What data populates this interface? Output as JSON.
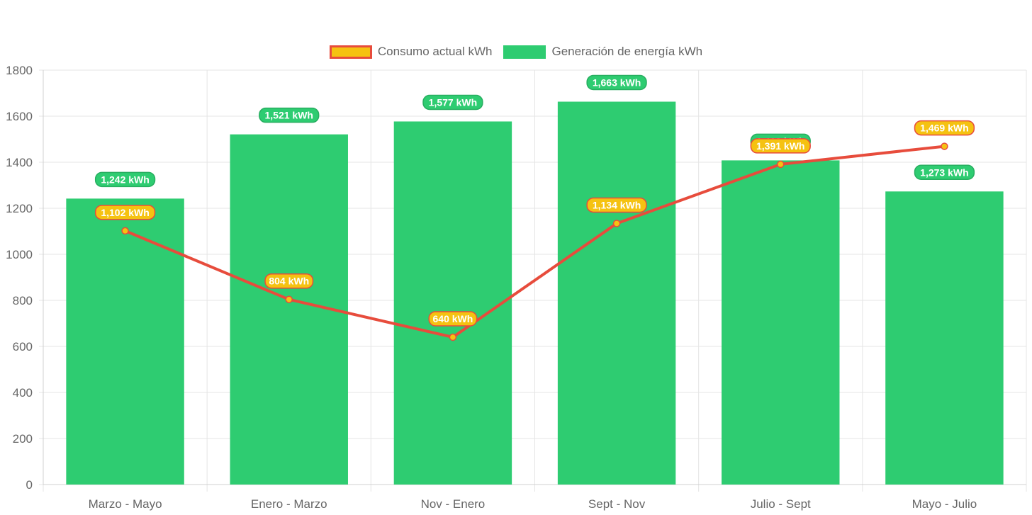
{
  "legend": [
    {
      "label": "Consumo actual kWh",
      "fill": "#f5c211",
      "stroke": "#e74c3c"
    },
    {
      "label": "Generación de energía kWh",
      "fill": "#2ecc71",
      "stroke": "#2ecc71"
    }
  ],
  "colors": {
    "bar": "#2ecc71",
    "line": "#e74c3c",
    "point_fill": "#f5c211",
    "grid": "#e5e5e5",
    "tick_text": "#666666",
    "label_text": "#ffffff"
  },
  "chart_data": {
    "type": "bar",
    "categories": [
      "Marzo - Mayo",
      "Enero - Marzo",
      "Nov - Enero",
      "Sept - Nov",
      "Julio - Sept",
      "Mayo - Julio"
    ],
    "series": [
      {
        "name": "Generación de energía kWh",
        "type": "bar",
        "values": [
          1242,
          1521,
          1577,
          1663,
          1408,
          1273
        ],
        "labels": [
          "1,242 kWh",
          "1,521 kWh",
          "1,577 kWh",
          "1,663 kWh",
          "1,408 kWh",
          "1,273 kWh"
        ]
      },
      {
        "name": "Consumo actual kWh",
        "type": "line",
        "values": [
          1102,
          804,
          640,
          1134,
          1391,
          1469
        ],
        "labels": [
          "1,102 kWh",
          "804 kWh",
          "640 kWh",
          "1,134 kWh",
          "1,391 kWh",
          "1,469 kWh"
        ]
      }
    ],
    "yticks": [
      "0",
      "200",
      "400",
      "600",
      "800",
      "1000",
      "1200",
      "1400",
      "1600",
      "1800"
    ],
    "ylim": [
      0,
      1800
    ],
    "grid": true,
    "legend_position": "top-center"
  }
}
